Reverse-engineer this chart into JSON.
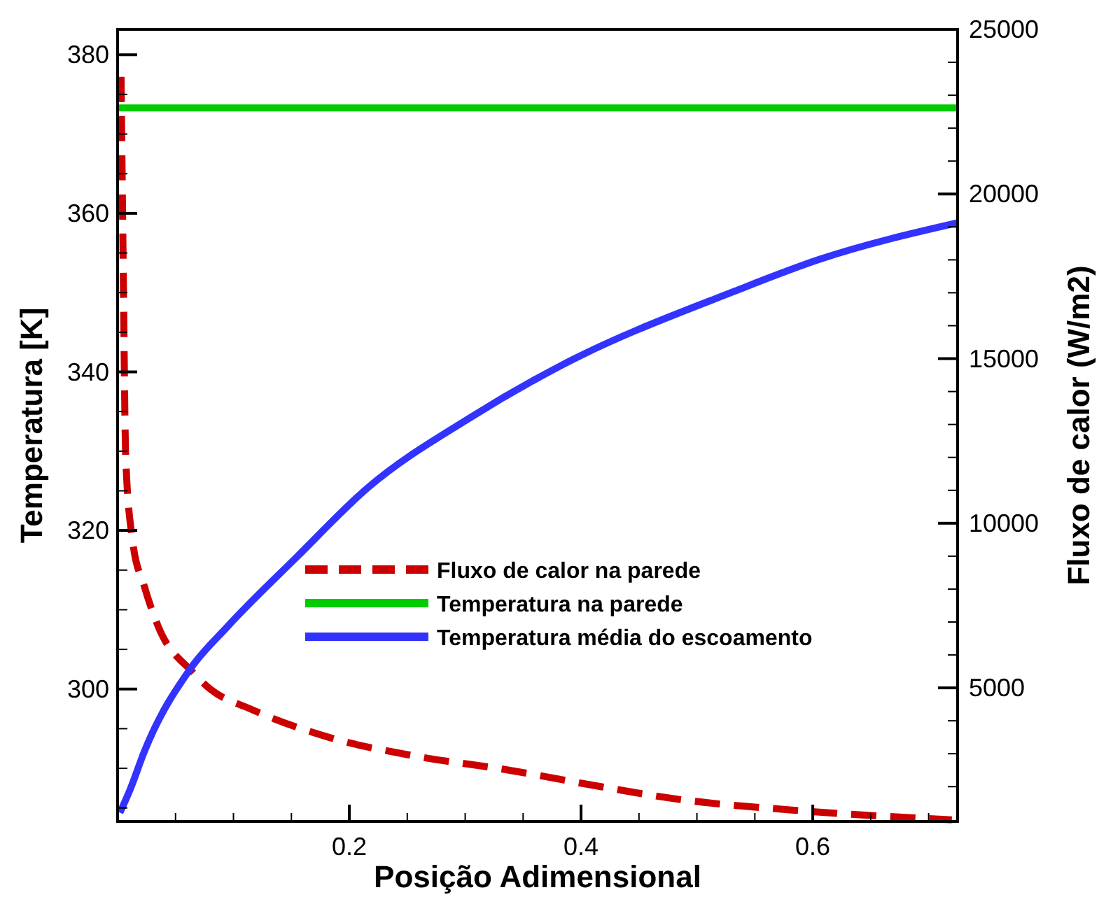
{
  "chart_data": {
    "type": "line",
    "xlabel": "Posição Adimensional",
    "ylabel": "Temperatura [K]",
    "y2label": "Fluxo de calor (W/m2)",
    "xlim": [
      0,
      0.725
    ],
    "ylim": [
      283.3,
      383.2
    ],
    "y2lim": [
      943,
      25000
    ],
    "xticks": [
      {
        "value": 0.05,
        "label": null
      },
      {
        "value": 0.1,
        "label": null
      },
      {
        "value": 0.15,
        "label": null
      },
      {
        "value": 0.2,
        "label": "0.2"
      },
      {
        "value": 0.25,
        "label": null
      },
      {
        "value": 0.3,
        "label": null
      },
      {
        "value": 0.35,
        "label": null
      },
      {
        "value": 0.4,
        "label": "0.4"
      },
      {
        "value": 0.45,
        "label": null
      },
      {
        "value": 0.5,
        "label": null
      },
      {
        "value": 0.55,
        "label": null
      },
      {
        "value": 0.6,
        "label": "0.6"
      },
      {
        "value": 0.65,
        "label": null
      },
      {
        "value": 0.7,
        "label": null
      }
    ],
    "yticks": [
      {
        "value": 285,
        "label": null
      },
      {
        "value": 290,
        "label": null
      },
      {
        "value": 295,
        "label": null
      },
      300,
      {
        "value": 305,
        "label": null
      },
      {
        "value": 310,
        "label": null
      },
      {
        "value": 315,
        "label": null
      },
      320,
      {
        "value": 325,
        "label": null
      },
      {
        "value": 330,
        "label": null
      },
      {
        "value": 335,
        "label": null
      },
      340,
      {
        "value": 345,
        "label": null
      },
      {
        "value": 350,
        "label": null
      },
      {
        "value": 355,
        "label": null
      },
      360,
      {
        "value": 365,
        "label": null
      },
      {
        "value": 370,
        "label": null
      },
      {
        "value": 375,
        "label": null
      },
      380
    ],
    "y2ticks": [
      {
        "value": 2000,
        "label": null
      },
      {
        "value": 3000,
        "label": null
      },
      {
        "value": 4000,
        "label": null
      },
      5000,
      {
        "value": 6000,
        "label": null
      },
      {
        "value": 7000,
        "label": null
      },
      {
        "value": 8000,
        "label": null
      },
      {
        "value": 9000,
        "label": null
      },
      10000,
      {
        "value": 11000,
        "label": null
      },
      {
        "value": 12000,
        "label": null
      },
      {
        "value": 13000,
        "label": null
      },
      {
        "value": 14000,
        "label": null
      },
      15000,
      {
        "value": 16000,
        "label": null
      },
      {
        "value": 17000,
        "label": null
      },
      {
        "value": 18000,
        "label": null
      },
      {
        "value": 19000,
        "label": null
      },
      20000,
      {
        "value": 21000,
        "label": null
      },
      {
        "value": 22000,
        "label": null
      },
      {
        "value": 23000,
        "label": null
      },
      {
        "value": 24000,
        "label": null
      },
      25000
    ],
    "grid": false,
    "legend": "bottom right",
    "marker": "none",
    "series": [
      {
        "name": "Fluxo de calor na parede",
        "color": "#cc0000",
        "axis": "y2",
        "line_style": "dashed",
        "x": [
          0.003,
          0.005,
          0.007,
          0.013,
          0.023,
          0.035,
          0.065,
          0.08,
          0.114,
          0.183,
          0.255,
          0.336,
          0.417,
          0.483,
          0.582,
          0.72
        ],
        "values": [
          23560,
          17300,
          12000,
          9450,
          8090,
          6870,
          5470,
          4960,
          4370,
          3490,
          2940,
          2510,
          2000,
          1620,
          1290,
          990
        ]
      },
      {
        "name": "Temperatura na parede",
        "color": "#00cc00",
        "line_style": "solid",
        "x": [
          0,
          0.725
        ],
        "values": [
          373.3,
          373.3
        ]
      },
      {
        "name": "Temperatura média do escoamento",
        "color": "#3333ff",
        "line_style": "solid",
        "x": [
          0.002,
          0.011,
          0.023,
          0.063,
          0.095,
          0.155,
          0.216,
          0.304,
          0.384,
          0.533,
          0.606,
          0.725
        ],
        "values": [
          284.4,
          287.4,
          292.1,
          302.6,
          307.9,
          316.7,
          325.4,
          334.2,
          340.9,
          350.2,
          354.2,
          358.8
        ]
      }
    ]
  }
}
